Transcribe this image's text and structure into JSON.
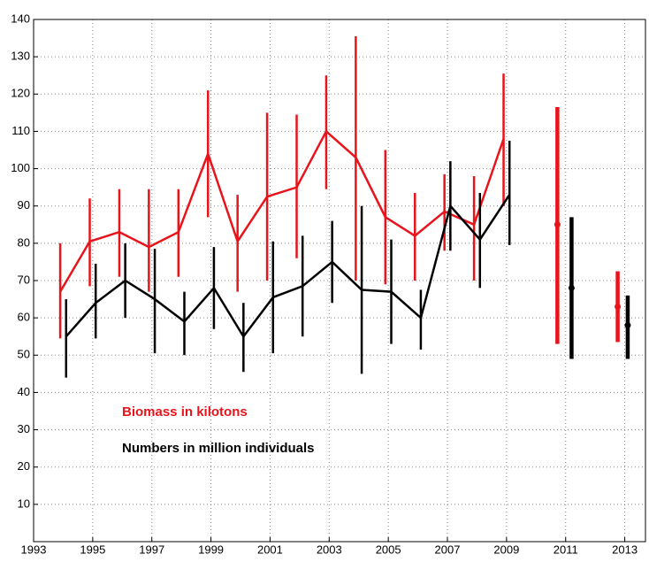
{
  "chart_data": {
    "type": "errorbar-line",
    "xlim": [
      1993,
      2013.7
    ],
    "xticks": [
      1993,
      1995,
      1997,
      1999,
      2001,
      2003,
      2005,
      2007,
      2009,
      2011,
      2013
    ],
    "ylim": [
      0,
      140
    ],
    "yticks": [
      10,
      20,
      30,
      40,
      50,
      60,
      70,
      80,
      90,
      100,
      110,
      120,
      130,
      140
    ],
    "grid": true,
    "series": [
      {
        "name": "Biomass in kilotons",
        "color": "#e8141b",
        "x": [
          1993.9,
          1994.9,
          1995.9,
          1996.9,
          1997.9,
          1998.9,
          1999.9,
          2000.9,
          2001.9,
          2002.9,
          2003.9,
          2004.9,
          2005.9,
          2006.9,
          2007.9,
          2008.9,
          2010,
          2010.72,
          2012,
          2012.76
        ],
        "values": [
          67,
          80.5,
          83,
          79,
          83,
          104,
          80.5,
          92.5,
          95,
          110,
          103,
          87,
          82,
          88.5,
          85,
          108,
          null,
          85,
          null,
          63
        ],
        "lower": [
          54.5,
          68.5,
          71,
          67,
          71,
          87,
          67,
          70,
          76,
          94.5,
          70,
          69,
          70,
          78,
          70,
          90,
          null,
          53,
          null,
          53.5
        ],
        "upper": [
          80,
          92,
          94.5,
          94.5,
          94.5,
          121,
          93,
          115,
          114.5,
          125,
          135.5,
          105,
          93.5,
          98.5,
          98,
          125.5,
          null,
          116.5,
          null,
          72.5
        ]
      },
      {
        "name": "Numbers in million individuals",
        "color": "#000000",
        "x": [
          1994.1,
          1995.1,
          1996.1,
          1997.1,
          1998.1,
          1999.1,
          2000.1,
          2001.1,
          2002.1,
          2003.1,
          2004.1,
          2005.1,
          2006.1,
          2007.1,
          2008.1,
          2009.1,
          2010,
          2011.2,
          2012,
          2013.1
        ],
        "values": [
          55,
          64,
          70,
          65,
          59,
          68,
          55,
          65.5,
          68.5,
          75,
          67.5,
          67,
          60,
          90,
          81,
          93,
          null,
          68,
          null,
          58
        ],
        "lower": [
          44,
          54.5,
          60,
          50.5,
          50,
          57,
          45.5,
          50.5,
          55,
          64,
          45,
          53,
          51.5,
          78,
          68,
          79.5,
          null,
          49,
          null,
          49
        ],
        "upper": [
          65,
          74.5,
          80,
          78.5,
          67,
          79,
          64,
          80.5,
          82,
          86,
          90,
          81,
          67.5,
          102,
          93.5,
          107.5,
          null,
          87,
          null,
          66
        ]
      }
    ]
  }
}
